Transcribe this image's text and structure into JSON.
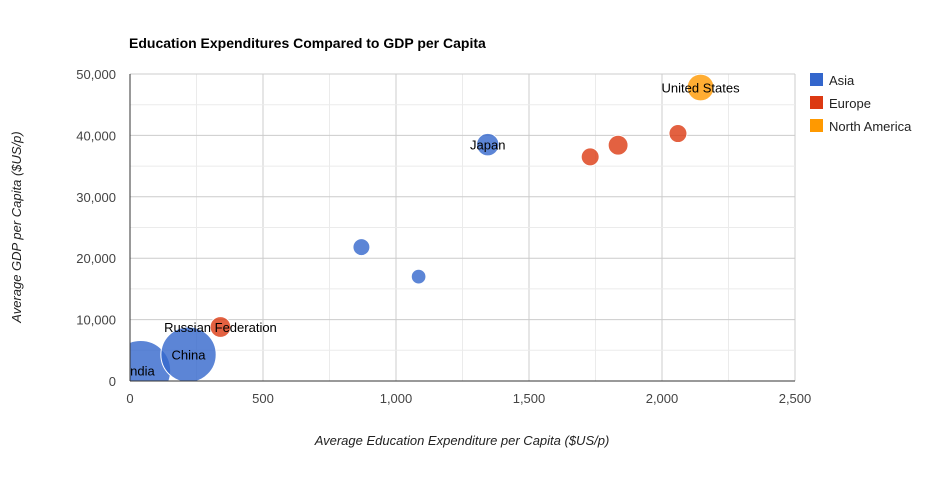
{
  "chart_data": {
    "type": "scatter",
    "title": "Education Expenditures Compared to GDP per Capita",
    "xlabel": "Average Education Expenditure per Capita ($US/p)",
    "ylabel": "Average GDP per Capita ($US/p)",
    "xlim": [
      0,
      2500
    ],
    "ylim": [
      0,
      50000
    ],
    "x_ticks": [
      0,
      500,
      1000,
      1500,
      2000,
      2500
    ],
    "x_tick_labels": [
      "0",
      "500",
      "1,000",
      "1,500",
      "2,000",
      "2,500"
    ],
    "y_ticks": [
      0,
      10000,
      20000,
      30000,
      40000,
      50000
    ],
    "y_tick_labels": [
      "0",
      "10,000",
      "20,000",
      "30,000",
      "40,000",
      "50,000"
    ],
    "grid": true,
    "legend_position": "right",
    "series": [
      {
        "name": "Asia",
        "color": "#3366cc",
        "points": [
          {
            "x": 40,
            "y": 1700,
            "size": 100,
            "label": "India"
          },
          {
            "x": 220,
            "y": 4300,
            "size": 85,
            "label": "China"
          },
          {
            "x": 1345,
            "y": 38500,
            "size": 14,
            "label": "Japan"
          },
          {
            "x": 870,
            "y": 21800,
            "size": 8,
            "label": ""
          },
          {
            "x": 1085,
            "y": 17000,
            "size": 6,
            "label": ""
          }
        ]
      },
      {
        "name": "Europe",
        "color": "#dc3912",
        "points": [
          {
            "x": 340,
            "y": 8800,
            "size": 12,
            "label": "Russian Federation"
          },
          {
            "x": 1730,
            "y": 36500,
            "size": 9,
            "label": ""
          },
          {
            "x": 1835,
            "y": 38400,
            "size": 11,
            "label": ""
          },
          {
            "x": 2060,
            "y": 40300,
            "size": 9,
            "label": ""
          }
        ]
      },
      {
        "name": "North America",
        "color": "#ff9900",
        "points": [
          {
            "x": 2145,
            "y": 47800,
            "size": 20,
            "label": "United States"
          }
        ]
      }
    ]
  }
}
